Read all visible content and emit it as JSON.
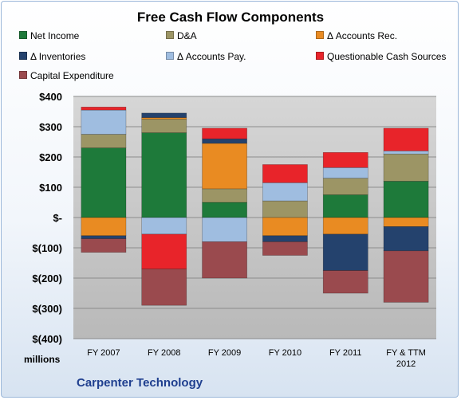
{
  "chart_data": {
    "type": "bar",
    "stacked": true,
    "title": "Free Cash Flow Components",
    "categories": [
      "FY 2007",
      "FY 2008",
      "FY 2009",
      "FY 2010",
      "FY 2011",
      "FY & TTM 2012"
    ],
    "ylim": [
      -400,
      400
    ],
    "yticks": [
      400,
      300,
      200,
      100,
      0,
      -100,
      -200,
      -300,
      -400
    ],
    "ytick_labels": [
      "$400",
      "$300",
      "$200",
      "$100",
      "$-",
      "$(100)",
      "$(200)",
      "$(300)",
      "$(400)"
    ],
    "units_label": "millions",
    "grid": true,
    "legend_position": "top",
    "series": [
      {
        "name": "Net Income",
        "color": "#1e7a3a",
        "values": [
          230,
          280,
          50,
          0,
          75,
          120
        ]
      },
      {
        "name": "D&A",
        "color": "#9c9565",
        "values": [
          45,
          45,
          45,
          55,
          55,
          90
        ]
      },
      {
        "name": "Δ Accounts Rec.",
        "color": "#e98b22",
        "values": [
          -60,
          5,
          150,
          -60,
          -55,
          -30
        ]
      },
      {
        "name": "Δ Inventories",
        "color": "#24426d",
        "values": [
          -10,
          15,
          15,
          -20,
          -120,
          -80
        ]
      },
      {
        "name": "Δ Accounts Pay.",
        "color": "#9fbde0",
        "values": [
          80,
          -55,
          -80,
          60,
          35,
          10
        ]
      },
      {
        "name": "Questionable Cash Sources",
        "color": "#e8242a",
        "values": [
          10,
          -115,
          35,
          60,
          50,
          75
        ]
      },
      {
        "name": "Capital Expenditure",
        "color": "#9a4a4e",
        "values": [
          -45,
          -120,
          -120,
          -45,
          -75,
          -170
        ]
      }
    ]
  },
  "company": "Carpenter Technology"
}
